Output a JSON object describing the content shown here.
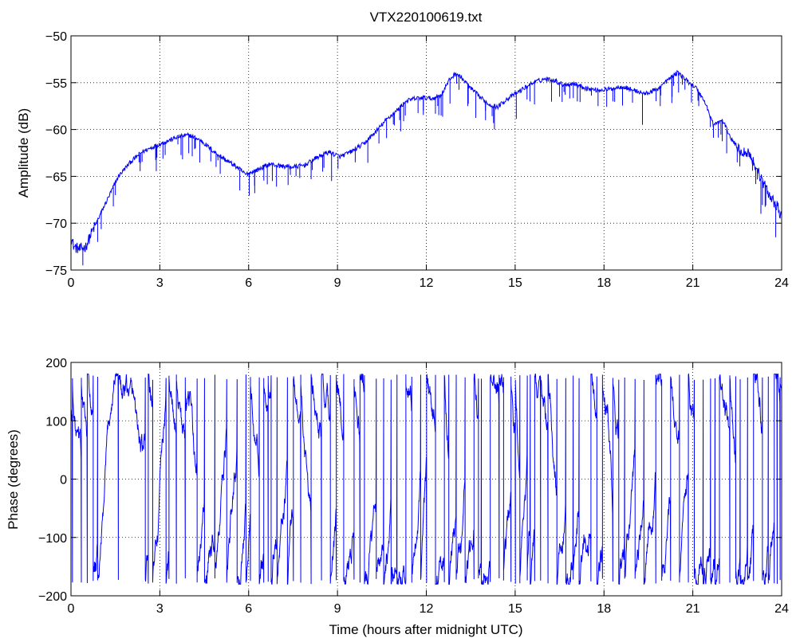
{
  "figure": {
    "title": "VTX220100619.txt"
  },
  "chart_data": [
    {
      "type": "line",
      "title": "VTX220100619.txt",
      "xlabel": "",
      "ylabel": "Amplitude (dB)",
      "xlim": [
        0,
        24
      ],
      "ylim": [
        -75,
        -50
      ],
      "xticks": [
        0,
        3,
        6,
        9,
        12,
        15,
        18,
        21,
        24
      ],
      "yticks": [
        -75,
        -70,
        -65,
        -60,
        -55,
        -50
      ],
      "xtick_labels": [
        "0",
        "3",
        "6",
        "9",
        "12",
        "15",
        "18",
        "21",
        "24"
      ],
      "ytick_labels": [
        "−75",
        "−70",
        "−65",
        "−60",
        "−55",
        "−50"
      ],
      "grid": true,
      "color": "#0000ff",
      "series": [
        {
          "x": [
            0,
            0.1,
            0.3,
            0.5,
            0.7,
            1.0,
            1.3,
            1.6,
            2.0,
            2.4,
            2.8,
            3.2,
            3.6,
            4.0,
            4.4,
            4.8,
            5.2,
            5.6,
            5.9,
            6.3,
            6.7,
            7.1,
            7.5,
            7.9,
            8.3,
            8.7,
            9.1,
            9.5,
            9.9,
            10.3,
            10.7,
            11.0,
            11.3,
            11.6,
            11.9,
            12.2,
            12.5,
            12.8,
            13.0,
            13.2,
            13.5,
            13.8,
            14.1,
            14.4,
            14.7,
            15.0,
            15.3,
            15.6,
            16.0,
            16.3,
            16.6,
            17.0,
            17.4,
            17.8,
            18.2,
            18.6,
            19.0,
            19.4,
            19.8,
            20.2,
            20.5,
            20.8,
            21.1,
            21.4,
            21.7,
            22.0,
            22.3,
            22.6,
            22.9,
            23.2,
            23.5,
            23.7,
            23.9,
            24.0
          ],
          "y": [
            -71.5,
            -72.5,
            -72.8,
            -72.5,
            -71.0,
            -69.0,
            -67.0,
            -65.0,
            -63.5,
            -62.4,
            -61.8,
            -61.3,
            -60.8,
            -60.6,
            -61.2,
            -62.3,
            -63.2,
            -64.0,
            -64.8,
            -64.3,
            -63.7,
            -63.9,
            -64.0,
            -63.8,
            -63.0,
            -62.4,
            -62.9,
            -62.3,
            -61.5,
            -60.2,
            -58.8,
            -58.0,
            -57.0,
            -56.7,
            -56.6,
            -56.7,
            -56.3,
            -54.6,
            -54.0,
            -54.5,
            -55.6,
            -56.5,
            -57.3,
            -57.6,
            -56.8,
            -56.2,
            -55.6,
            -55.0,
            -54.6,
            -54.7,
            -55.2,
            -55.1,
            -55.6,
            -55.8,
            -55.7,
            -55.4,
            -55.8,
            -56.2,
            -55.7,
            -54.6,
            -53.9,
            -54.8,
            -55.5,
            -57.0,
            -59.5,
            -59.0,
            -61.0,
            -62.3,
            -62.5,
            -64.5,
            -66.5,
            -67.5,
            -68.5,
            -69.5
          ],
          "fades": [
            [
              0.4,
              -74.5
            ],
            [
              0.9,
              -72.0
            ],
            [
              1.5,
              -67.0
            ],
            [
              2.3,
              -63.5
            ],
            [
              2.9,
              -63.0
            ],
            [
              4.2,
              -62.0
            ],
            [
              4.9,
              -64.0
            ],
            [
              5.7,
              -66.5
            ],
            [
              6.2,
              -66.0
            ],
            [
              6.8,
              -65.5
            ],
            [
              7.6,
              -65.0
            ],
            [
              8.5,
              -64.5
            ],
            [
              8.8,
              -65.5
            ],
            [
              9.6,
              -63.5
            ],
            [
              10.4,
              -61.5
            ],
            [
              11.1,
              -59.0
            ],
            [
              11.9,
              -58.0
            ],
            [
              12.5,
              -58.5
            ],
            [
              13.4,
              -57.5
            ],
            [
              14.0,
              -59.0
            ],
            [
              14.3,
              -60.0
            ],
            [
              15.5,
              -57.0
            ],
            [
              16.5,
              -56.5
            ],
            [
              17.1,
              -57.0
            ],
            [
              17.8,
              -57.5
            ],
            [
              18.3,
              -57.0
            ],
            [
              19.3,
              -59.5
            ],
            [
              19.9,
              -57.5
            ],
            [
              20.3,
              -56.5
            ],
            [
              21.2,
              -57.5
            ],
            [
              22.5,
              -63.5
            ],
            [
              23.3,
              -69.0
            ],
            [
              23.8,
              -71.5
            ]
          ]
        }
      ]
    },
    {
      "type": "line",
      "title": "",
      "xlabel": "Time (hours after midnight UTC)",
      "ylabel": "Phase (degrees)",
      "xlim": [
        0,
        24
      ],
      "ylim": [
        -200,
        200
      ],
      "xticks": [
        0,
        3,
        6,
        9,
        12,
        15,
        18,
        21,
        24
      ],
      "yticks": [
        -200,
        -100,
        0,
        100,
        200
      ],
      "xtick_labels": [
        "0",
        "3",
        "6",
        "9",
        "12",
        "15",
        "18",
        "21",
        "24"
      ],
      "ytick_labels": [
        "−200",
        "−100",
        "0",
        "100",
        "200"
      ],
      "grid": true,
      "color": "#0000ff",
      "series": [
        {
          "wrap_times": [
            0.05,
            0.35,
            0.55,
            0.75,
            0.9,
            1.6,
            2.5,
            2.6,
            2.75,
            3.2,
            3.3,
            3.55,
            3.85,
            4.25,
            4.5,
            4.85,
            5.25,
            5.6,
            5.9,
            6.05,
            6.35,
            6.5,
            6.65,
            6.75,
            6.95,
            7.3,
            7.5,
            7.75,
            8.1,
            8.45,
            8.75,
            8.95,
            9.2,
            9.55,
            9.75,
            9.9,
            10.3,
            10.55,
            10.8,
            11.0,
            11.3,
            11.5,
            11.8,
            12.0,
            12.3,
            12.6,
            12.75,
            13.0,
            13.3,
            13.6,
            13.75,
            13.85,
            14.15,
            14.45,
            14.6,
            14.85,
            15.0,
            15.15,
            15.4,
            15.5,
            15.65,
            15.85,
            16.1,
            16.4,
            16.7,
            16.95,
            17.15,
            17.55,
            17.75,
            17.95,
            18.3,
            18.5,
            18.7,
            19.05,
            19.35,
            19.75,
            19.95,
            20.25,
            20.55,
            20.85,
            21.05,
            21.35,
            21.6,
            21.75,
            21.9,
            22.25,
            22.45,
            22.6,
            22.85,
            23.05,
            23.35,
            23.55,
            23.75,
            23.85,
            23.95
          ]
        }
      ]
    }
  ]
}
